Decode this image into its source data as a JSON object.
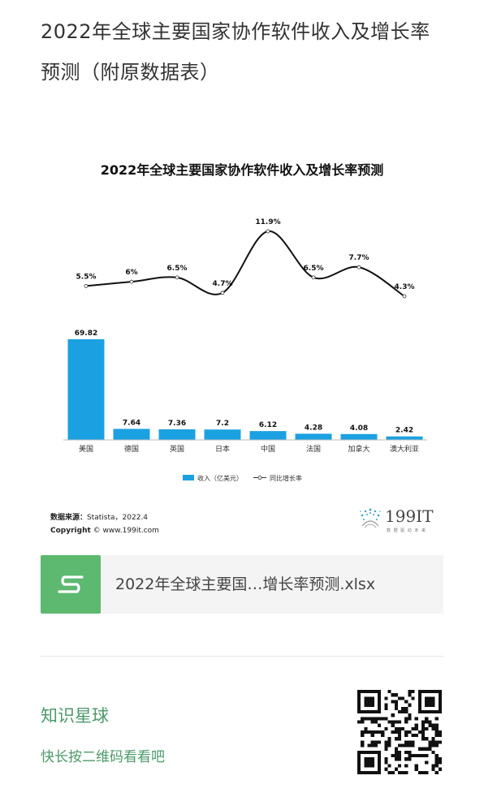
{
  "article": {
    "title": "2022年全球主要国家协作软件收入及增长率预测（附原数据表）"
  },
  "chart_data": {
    "type": "bar+line",
    "title": "2022年全球主要国家协作软件收入及增长率预测",
    "categories": [
      "美国",
      "德国",
      "英国",
      "日本",
      "中国",
      "法国",
      "加拿大",
      "澳大利亚"
    ],
    "series": [
      {
        "name": "收入（亿美元）",
        "type": "bar",
        "color": "#1ba1e2",
        "values": [
          69.82,
          7.64,
          7.36,
          7.2,
          6.12,
          4.28,
          4.08,
          2.42
        ],
        "labels": [
          "69.82",
          "7.64",
          "7.36",
          "7.2",
          "6.12",
          "4.28",
          "4.08",
          "2.42"
        ]
      },
      {
        "name": "同比增长率",
        "type": "line",
        "color": "#111111",
        "values": [
          5.5,
          6,
          6.5,
          4.7,
          11.9,
          6.5,
          7.7,
          4.3
        ],
        "labels": [
          "5.5%",
          "6%",
          "6.5%",
          "4.7%",
          "11.9%",
          "6.5%",
          "7.7%",
          "4.3%"
        ]
      }
    ],
    "legend": {
      "bar_label": "收入（亿美元）",
      "line_label": "同比增长率",
      "placement": "bottom"
    },
    "grid": false
  },
  "source": {
    "label": "数据来源：",
    "value": "Statista，2022.4",
    "copyright_label": "Copyright",
    "copyright_value": "© www.199it.com"
  },
  "brand": {
    "name": "199IT",
    "tagline": "数 据 驱 动 未 来"
  },
  "attachment": {
    "icon": "spreadsheet-s-icon",
    "filename": "2022年全球主要国…增长率预测.xlsx"
  },
  "planet": {
    "title": "知识星球",
    "subtitle": "快长按二维码看看吧"
  },
  "colors": {
    "bar": "#1ba1e2",
    "file_icon": "#5db870",
    "planet_text": "#4c9a6a"
  }
}
